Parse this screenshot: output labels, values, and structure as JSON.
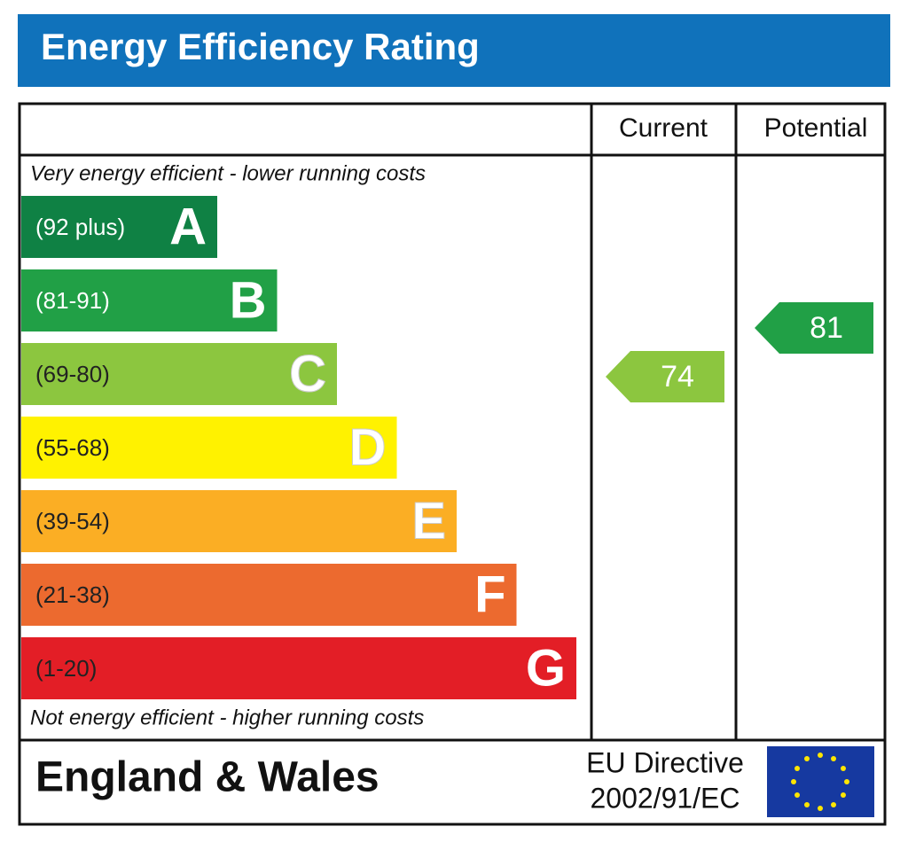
{
  "title": "Energy Efficiency Rating",
  "columns": [
    "Current",
    "Potential"
  ],
  "top_note": "Very energy efficient - lower running costs",
  "bottom_note": "Not energy efficient - higher running costs",
  "bands": [
    {
      "range": "(92 plus)",
      "letter": "A",
      "color": "#0f8144"
    },
    {
      "range": "(81-91)",
      "letter": "B",
      "color": "#21a046"
    },
    {
      "range": "(69-80)",
      "letter": "C",
      "color": "#8cc63f"
    },
    {
      "range": "(55-68)",
      "letter": "D",
      "color": "#fff200"
    },
    {
      "range": "(39-54)",
      "letter": "E",
      "color": "#fbae24"
    },
    {
      "range": "(21-38)",
      "letter": "F",
      "color": "#ec6a2f"
    },
    {
      "range": "(1-20)",
      "letter": "G",
      "color": "#e31e26"
    }
  ],
  "current": {
    "value": 74,
    "color": "#8cc63f"
  },
  "potential": {
    "value": 81,
    "color": "#21a046"
  },
  "footer": {
    "region": "England & Wales",
    "directive": [
      "EU Directive",
      "2002/91/EC"
    ]
  }
}
